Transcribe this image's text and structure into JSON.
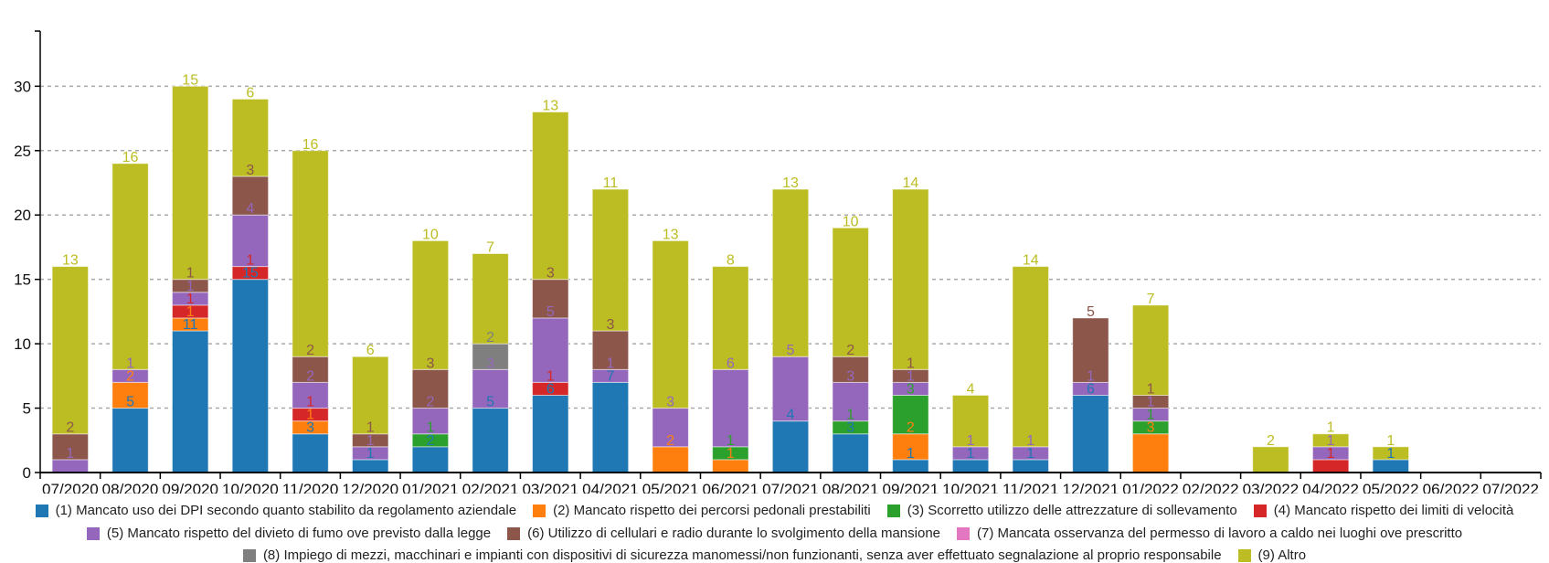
{
  "chart_data": {
    "type": "bar",
    "stacked": true,
    "categories": [
      "07/2020",
      "08/2020",
      "09/2020",
      "10/2020",
      "11/2020",
      "12/2020",
      "01/2021",
      "02/2021",
      "03/2021",
      "04/2021",
      "05/2021",
      "06/2021",
      "07/2021",
      "08/2021",
      "09/2021",
      "10/2021",
      "11/2021",
      "12/2021",
      "01/2022",
      "02/2022",
      "03/2022",
      "04/2022",
      "05/2022",
      "06/2022",
      "07/2022"
    ],
    "ylim": [
      0,
      34
    ],
    "yticks": [
      0,
      5,
      10,
      15,
      20,
      25,
      30
    ],
    "grid": true,
    "legend_position": "bottom",
    "data_labels": true,
    "series": [
      {
        "name": "(1) Mancato uso dei DPI secondo quanto stabilito da regolamento aziendale",
        "color": "#1f77b4",
        "values": [
          0,
          5,
          11,
          15,
          3,
          1,
          2,
          5,
          6,
          7,
          0,
          0,
          4,
          3,
          1,
          1,
          1,
          6,
          0,
          0,
          0,
          0,
          1,
          0,
          0
        ]
      },
      {
        "name": "(2) Mancato rispetto dei percorsi pedonali prestabiliti",
        "color": "#ff7f0e",
        "values": [
          0,
          2,
          1,
          0,
          1,
          0,
          0,
          0,
          0,
          0,
          2,
          1,
          0,
          0,
          2,
          0,
          0,
          0,
          3,
          0,
          0,
          0,
          0,
          0,
          0
        ]
      },
      {
        "name": "(3) Scorretto utilizzo delle attrezzature di sollevamento",
        "color": "#2ca02c",
        "values": [
          0,
          0,
          0,
          0,
          0,
          0,
          1,
          0,
          0,
          0,
          0,
          1,
          0,
          1,
          3,
          0,
          0,
          0,
          1,
          0,
          0,
          0,
          0,
          0,
          0
        ]
      },
      {
        "name": "(4) Mancato rispetto dei limiti di velocità",
        "color": "#d62728",
        "values": [
          0,
          0,
          1,
          1,
          1,
          0,
          0,
          0,
          1,
          0,
          0,
          0,
          0,
          0,
          0,
          0,
          0,
          0,
          0,
          0,
          0,
          1,
          0,
          0,
          0
        ]
      },
      {
        "name": "(5) Mancato rispetto del divieto di fumo ove previsto dalla legge",
        "color": "#9467bd",
        "values": [
          1,
          1,
          1,
          4,
          2,
          1,
          2,
          3,
          5,
          1,
          3,
          6,
          5,
          3,
          1,
          1,
          1,
          1,
          1,
          0,
          0,
          1,
          0,
          0,
          0
        ]
      },
      {
        "name": "(6) Utilizzo di cellulari e radio durante lo svolgimento della mansione",
        "color": "#8c564b",
        "values": [
          2,
          0,
          1,
          3,
          2,
          1,
          3,
          0,
          3,
          3,
          0,
          0,
          0,
          2,
          1,
          0,
          0,
          5,
          1,
          0,
          0,
          0,
          0,
          0,
          0
        ]
      },
      {
        "name": "(7) Mancata osservanza del permesso di lavoro a caldo nei luoghi ove prescritto",
        "color": "#e377c2",
        "values": [
          0,
          0,
          0,
          0,
          0,
          0,
          0,
          0,
          0,
          0,
          0,
          0,
          0,
          0,
          0,
          0,
          0,
          0,
          0,
          0,
          0,
          0,
          0,
          0,
          0
        ]
      },
      {
        "name": "(8) Impiego di mezzi, macchinari e impianti con dispositivi di sicurezza manomessi/non funzionanti, senza aver effettuato segnalazione al proprio responsabile",
        "color": "#7f7f7f",
        "values": [
          0,
          0,
          0,
          0,
          0,
          0,
          0,
          2,
          0,
          0,
          0,
          0,
          0,
          0,
          0,
          0,
          0,
          0,
          0,
          0,
          0,
          0,
          0,
          0,
          0
        ]
      },
      {
        "name": "(9) Altro",
        "color": "#bcbd22",
        "values": [
          13,
          16,
          15,
          6,
          16,
          6,
          10,
          7,
          13,
          11,
          13,
          8,
          13,
          10,
          14,
          4,
          14,
          0,
          7,
          0,
          2,
          1,
          1,
          0,
          0
        ]
      }
    ]
  }
}
